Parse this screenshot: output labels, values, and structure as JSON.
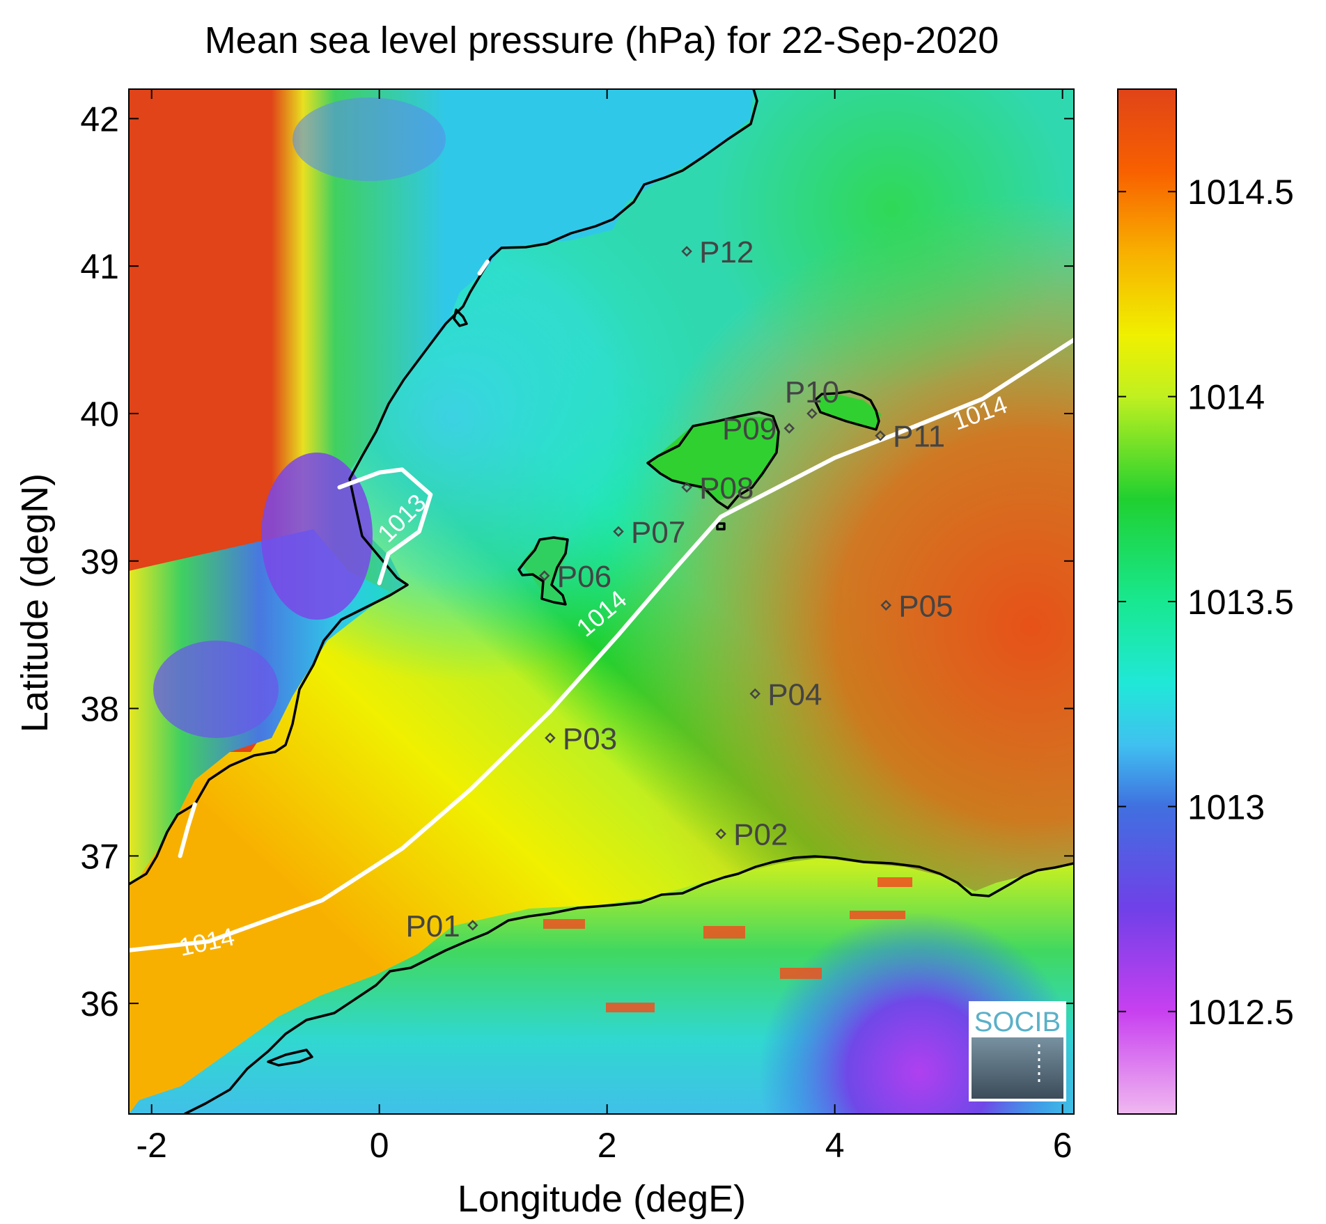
{
  "chart_data": {
    "type": "heatmap",
    "title": "Mean sea level pressure (hPa) for 22-Sep-2020",
    "xlabel": "Longitude (degE)",
    "ylabel": "Latitude (degN)",
    "xlim": [
      -2.2,
      6.1
    ],
    "ylim": [
      35.25,
      42.2
    ],
    "x_ticks": [
      -2,
      0,
      2,
      4,
      6
    ],
    "x_tick_labels": [
      "-2",
      "0",
      "2",
      "4",
      "6"
    ],
    "y_ticks": [
      36,
      37,
      38,
      39,
      40,
      41,
      42
    ],
    "y_tick_labels": [
      "36",
      "37",
      "38",
      "39",
      "40",
      "41",
      "42"
    ],
    "colorbar": {
      "range": [
        1012.25,
        1014.75
      ],
      "ticks": [
        1012.5,
        1013,
        1013.5,
        1014,
        1014.5
      ],
      "tick_labels": [
        "1012.5",
        "1013",
        "1013.5",
        "1014",
        "1014.5"
      ],
      "colormap": [
        {
          "v": 1012.25,
          "color": "#f0b8f0"
        },
        {
          "v": 1012.5,
          "color": "#c840f0"
        },
        {
          "v": 1012.75,
          "color": "#7040e8"
        },
        {
          "v": 1013.0,
          "color": "#4070e0"
        },
        {
          "v": 1013.15,
          "color": "#40c0f0"
        },
        {
          "v": 1013.3,
          "color": "#20e8d8"
        },
        {
          "v": 1013.5,
          "color": "#18e890"
        },
        {
          "v": 1013.75,
          "color": "#20d030"
        },
        {
          "v": 1014.0,
          "color": "#c0f020"
        },
        {
          "v": 1014.15,
          "color": "#f0f000"
        },
        {
          "v": 1014.35,
          "color": "#f8b000"
        },
        {
          "v": 1014.55,
          "color": "#f86000"
        },
        {
          "v": 1014.75,
          "color": "#e04418"
        }
      ]
    },
    "contours": [
      {
        "level": "1014",
        "points": [
          [
            -2.2,
            36.36
          ],
          [
            -1.5,
            36.42
          ],
          [
            -0.5,
            36.7
          ],
          [
            0.2,
            37.05
          ],
          [
            0.8,
            37.45
          ],
          [
            1.5,
            37.98
          ],
          [
            2.1,
            38.5
          ],
          [
            2.6,
            38.95
          ],
          [
            3.0,
            39.3
          ],
          [
            3.5,
            39.5
          ],
          [
            4.0,
            39.7
          ],
          [
            4.5,
            39.85
          ],
          [
            5.3,
            40.1
          ],
          [
            6.1,
            40.5
          ]
        ],
        "labels": [
          {
            "text": "1014",
            "lon": -1.5,
            "lat": 36.36,
            "angle": -12
          },
          {
            "text": "1014",
            "lon": 2.0,
            "lat": 38.6,
            "angle": -40
          },
          {
            "text": "1014",
            "lon": 5.3,
            "lat": 39.95,
            "angle": -20
          }
        ]
      },
      {
        "level": "1013",
        "points": [
          [
            -0.35,
            39.5
          ],
          [
            0.0,
            39.6
          ],
          [
            0.2,
            39.62
          ],
          [
            0.45,
            39.45
          ],
          [
            0.35,
            39.2
          ],
          [
            0.08,
            39.05
          ],
          [
            0.0,
            38.85
          ]
        ],
        "labels": [
          {
            "text": "1013",
            "lon": 0.25,
            "lat": 39.25,
            "angle": -45
          }
        ]
      },
      {
        "level": "",
        "points": [
          [
            -1.62,
            37.35
          ],
          [
            -1.68,
            37.2
          ],
          [
            -1.75,
            37.0
          ]
        ],
        "labels": []
      },
      {
        "level": "",
        "points": [
          [
            0.88,
            40.95
          ],
          [
            0.95,
            41.03
          ]
        ],
        "labels": []
      }
    ],
    "stations": [
      {
        "name": "P01",
        "lon": 0.82,
        "lat": 36.53,
        "label_side": "left"
      },
      {
        "name": "P02",
        "lon": 3.0,
        "lat": 37.15,
        "label_side": "right"
      },
      {
        "name": "P03",
        "lon": 1.5,
        "lat": 37.8,
        "label_side": "right"
      },
      {
        "name": "P04",
        "lon": 3.3,
        "lat": 38.1,
        "label_side": "right"
      },
      {
        "name": "P05",
        "lon": 4.45,
        "lat": 38.7,
        "label_side": "right"
      },
      {
        "name": "P06",
        "lon": 1.45,
        "lat": 38.9,
        "label_side": "right"
      },
      {
        "name": "P07",
        "lon": 2.1,
        "lat": 39.2,
        "label_side": "right"
      },
      {
        "name": "P08",
        "lon": 2.7,
        "lat": 39.5,
        "label_side": "right"
      },
      {
        "name": "P09",
        "lon": 3.6,
        "lat": 39.9,
        "label_side": "left"
      },
      {
        "name": "P10",
        "lon": 3.8,
        "lat": 40.0,
        "label_side": "above"
      },
      {
        "name": "P11",
        "lon": 4.4,
        "lat": 39.85,
        "label_side": "right"
      },
      {
        "name": "P12",
        "lon": 2.7,
        "lat": 41.1,
        "label_side": "right"
      }
    ]
  },
  "logo": {
    "text": "SOCIB"
  }
}
